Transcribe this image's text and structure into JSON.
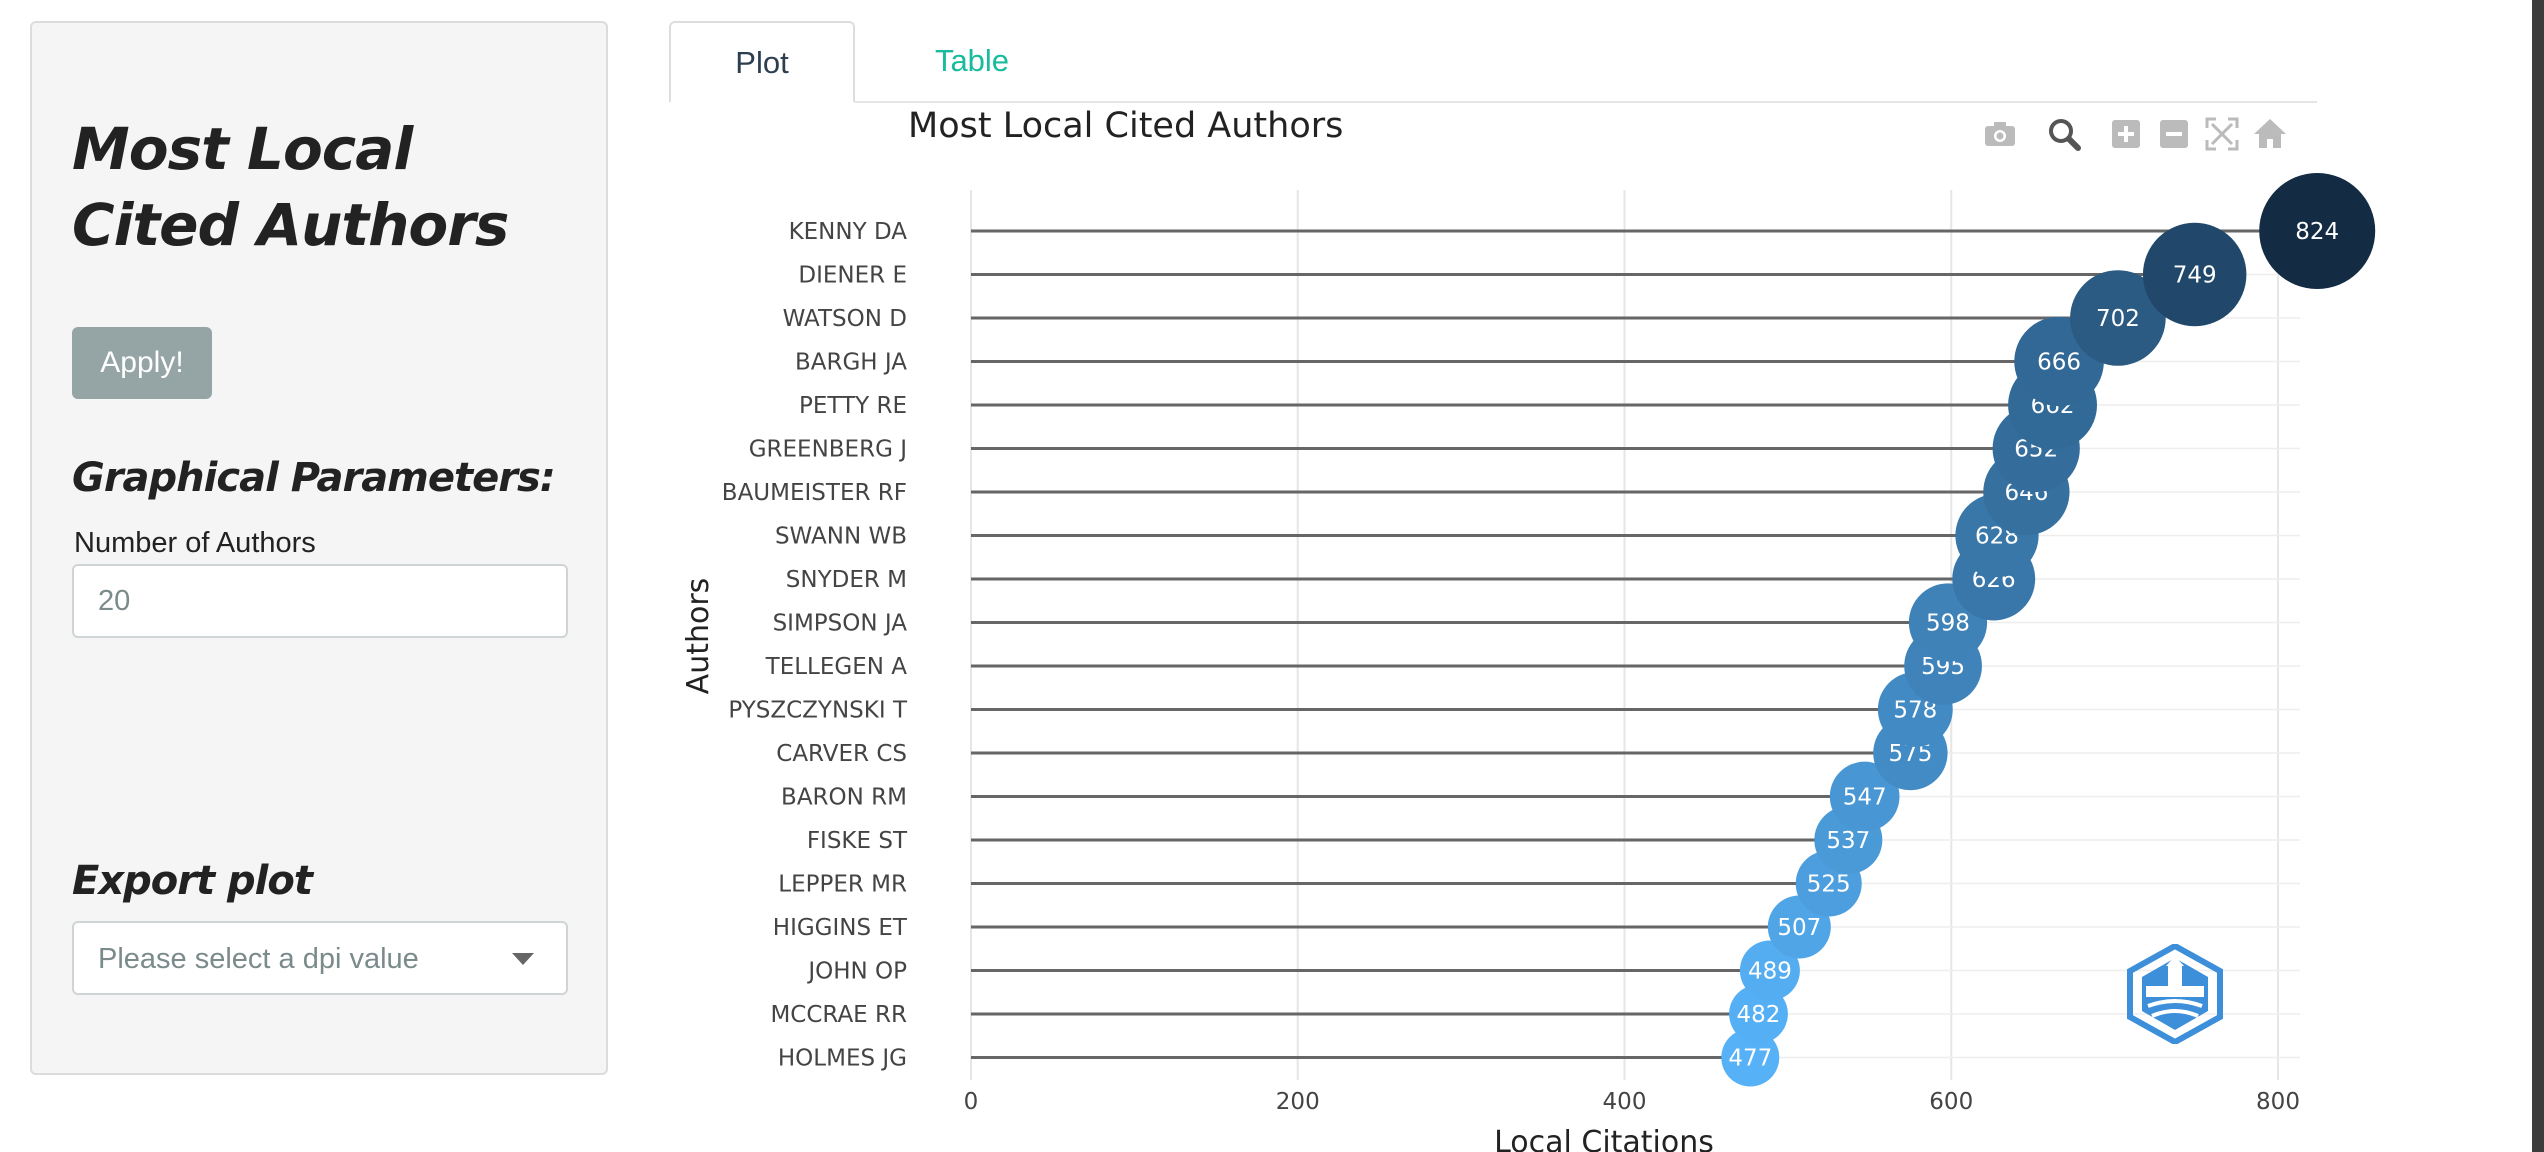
{
  "sidebar": {
    "title": "Most Local Cited Authors",
    "apply_label": "Apply!",
    "graphical_heading": "Graphical Parameters:",
    "num_authors_label": "Number of Authors",
    "num_authors_value": "20",
    "export_heading": "Export plot",
    "dpi_placeholder": "Please select a dpi value"
  },
  "tabs": [
    {
      "label": "Plot",
      "active": true
    },
    {
      "label": "Table",
      "active": false
    }
  ],
  "modebar": {
    "icons": [
      "camera-icon",
      "zoom-icon",
      "zoom-in-icon",
      "zoom-out-icon",
      "autoscale-icon",
      "home-icon"
    ],
    "icon_color": "#bbbbbb",
    "active_icon_color": "#555555"
  },
  "logo": {
    "text": "BIBLIOMETRIX",
    "color": "#3d8fd9"
  },
  "chart_data": {
    "type": "lollipop",
    "title": "Most Local Cited Authors",
    "xlabel": "Local Citations",
    "ylabel": "Authors",
    "xlim": [
      0,
      870
    ],
    "xticks": [
      0,
      200,
      400,
      600,
      800
    ],
    "categories": [
      "KENNY DA",
      "DIENER E",
      "WATSON D",
      "BARGH JA",
      "PETTY RE",
      "GREENBERG J",
      "BAUMEISTER RF",
      "SWANN WB",
      "SNYDER M",
      "SIMPSON JA",
      "TELLEGEN A",
      "PYSZCZYNSKI T",
      "CARVER CS",
      "BARON RM",
      "FISKE ST",
      "LEPPER MR",
      "HIGGINS ET",
      "JOHN OP",
      "MCCRAE RR",
      "HOLMES JG"
    ],
    "values": [
      824,
      749,
      702,
      666,
      662,
      652,
      646,
      628,
      626,
      598,
      595,
      578,
      575,
      547,
      537,
      525,
      507,
      489,
      482,
      477
    ],
    "grid": true,
    "color_low": "#56b1f7",
    "color_high": "#132b43",
    "stem_color": "#666666"
  }
}
